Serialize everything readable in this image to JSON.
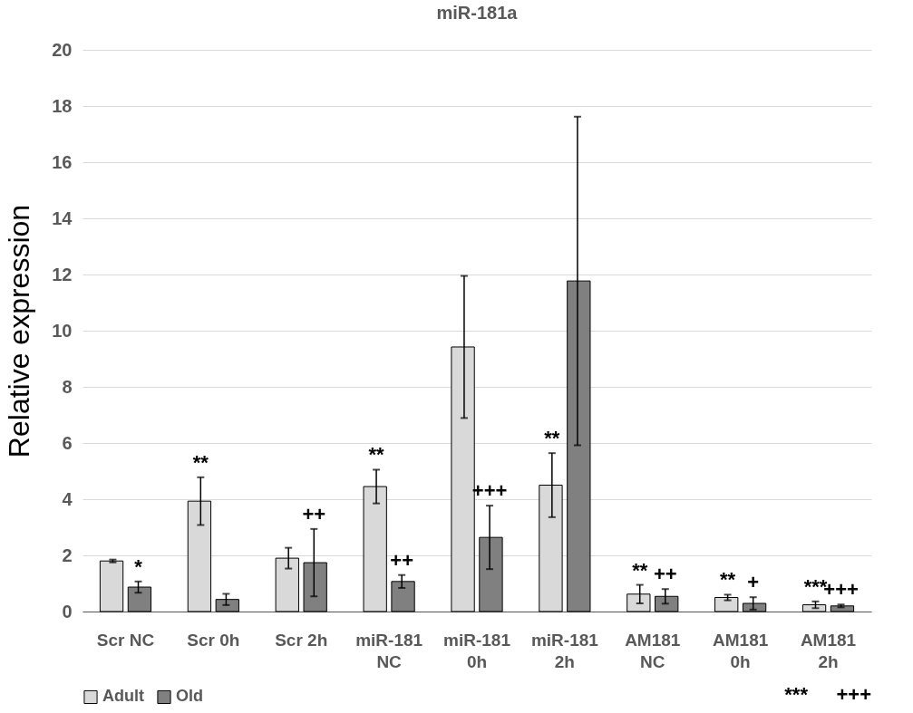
{
  "chart_data": {
    "type": "bar",
    "title": "miR-181a",
    "ylabel": "Relative expression",
    "categories": [
      "Scr NC",
      "Scr 0h",
      "Scr 2h",
      "miR-181\nNC",
      "miR-181\n0h",
      "miR-181\n2h",
      "AM181\nNC",
      "AM181\n0h",
      "AM181\n2h"
    ],
    "series": [
      {
        "name": "Adult",
        "color": "#d9d9d9",
        "values": [
          1.8,
          3.93,
          1.9,
          4.45,
          9.42,
          4.5,
          0.62,
          0.5,
          0.24
        ],
        "errors": [
          0.05,
          0.85,
          0.37,
          0.6,
          2.53,
          1.14,
          0.33,
          0.1,
          0.12
        ]
      },
      {
        "name": "Old",
        "color": "#808080",
        "values": [
          0.87,
          0.43,
          1.74,
          1.07,
          2.64,
          11.77,
          0.54,
          0.29,
          0.2
        ],
        "errors": [
          0.2,
          0.2,
          1.2,
          0.23,
          1.13,
          5.85,
          0.26,
          0.22,
          0.05
        ]
      }
    ],
    "ylim": [
      0,
      20
    ],
    "yticks": [
      0,
      2,
      4,
      6,
      8,
      10,
      12,
      14,
      16,
      18,
      20
    ],
    "grid": "y",
    "legend": "bottom",
    "annotations": [
      {
        "text": "*",
        "x": "Scr NC",
        "y": 0.87
      },
      {
        "text": "**",
        "x": "Scr 0h",
        "y": 3.93
      },
      {
        "text": "++",
        "x": "Scr 2h",
        "y": 1.74
      },
      {
        "text": "**",
        "x": "miR-181\nNC",
        "y": 4.45
      },
      {
        "text": "++",
        "x": "miR-181\nNC",
        "y": 1.07
      },
      "***",
      {
        "text": "+++",
        "x": "miR-181\n0h",
        "y": 2.64
      },
      {
        "text": "**",
        "x": "miR-181\n2h",
        "y": 4.5
      },
      "+++",
      {
        "text": "**",
        "x": "AM181\nNC",
        "y": 0.62
      },
      {
        "text": "++",
        "x": "AM181\nNC",
        "y": 0.54
      },
      {
        "text": "**",
        "x": "AM181\n0h",
        "y": 0.5
      },
      {
        "text": "+",
        "x": "AM181\n0h",
        "y": 0.29
      },
      {
        "text": "***",
        "x": "AM181\n2h",
        "y": 0.24
      },
      {
        "text": "+++",
        "x": "AM181\n2h",
        "y": 0.2
      }
    ]
  }
}
